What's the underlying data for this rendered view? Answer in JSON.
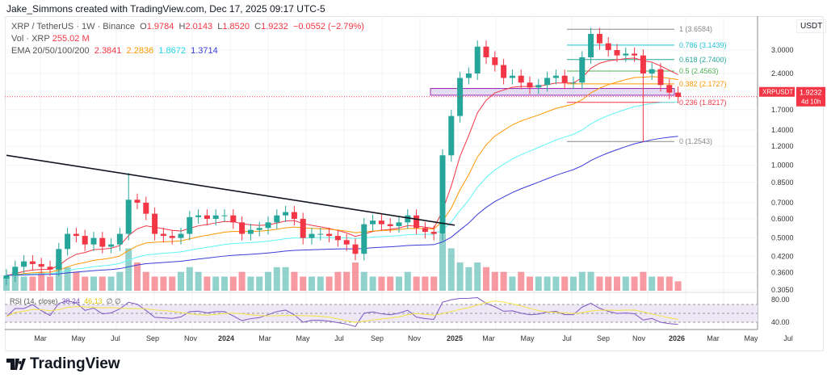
{
  "credit": "Jake_Simmons created with TradingView.com, Dec 17, 2025 09:17 UTC-5",
  "legend": {
    "symbol": "XRP / TetherUS · 1W · Binance",
    "o_label": "O",
    "o": "1.9784",
    "h_label": "H",
    "h": "2.0143",
    "l_label": "L",
    "l": "1.8520",
    "c_label": "C",
    "c": "1.9232",
    "change": "−0.0552 (−2.79%)",
    "vol_label": "Vol · XRP",
    "vol": "255.02 M",
    "ema_label": "EMA 20/50/100/200",
    "ema20": "2.3841",
    "ema50": "2.2836",
    "ema100": "1.8672",
    "ema200": "1.3714"
  },
  "colors": {
    "up": "#26a69a",
    "down": "#f23645",
    "ema20": "#f23645",
    "ema50": "#ff9800",
    "ema100": "#5ff5f5",
    "ema200": "#3b3bd9",
    "rsi": "#7e57c2",
    "rsi_ma": "#f5e342"
  },
  "price_axis": {
    "unit": "USDT",
    "ticks": [
      "3.0000",
      "2.4000",
      "1.7000",
      "1.4000",
      "1.2000",
      "1.0000",
      "0.8500",
      "0.7000",
      "0.6000",
      "0.5000",
      "0.4200",
      "0.3600",
      "0.3050"
    ],
    "tag_symbol": "XRPUSDT",
    "tag_price": "1.9232",
    "tag_countdown": "4d 10h"
  },
  "rsi": {
    "label": "RSI (14, close)",
    "value": "38.24",
    "ma": "46.13",
    "na1": "∅",
    "na2": "∅",
    "ticks": [
      "80.00",
      "40.00"
    ]
  },
  "time_axis": [
    "Mar",
    "May",
    "Jul",
    "Sep",
    "Nov",
    "2024",
    "Mar",
    "May",
    "Jul",
    "Sep",
    "Nov",
    "2025",
    "Mar",
    "May",
    "Jul",
    "Sep",
    "Nov",
    "2026",
    "Mar",
    "May",
    "Jul"
  ],
  "fib": [
    {
      "label": "1 (3.6584)",
      "price": 3.6584,
      "color": "#888888"
    },
    {
      "label": "0.786 (3.1439)",
      "price": 3.1439,
      "color": "#22c3d6"
    },
    {
      "label": "0.618 (2.7400)",
      "price": 2.74,
      "color": "#26a69a"
    },
    {
      "label": "0.5 (2.4563)",
      "price": 2.4563,
      "color": "#4caf50"
    },
    {
      "label": "0.382 (2.1727)",
      "price": 2.1727,
      "color": "#ff9800"
    },
    {
      "label": "0.236 (1.8217)",
      "price": 1.8217,
      "color": "#f23645"
    },
    {
      "label": "0 (1.2543)",
      "price": 1.2543,
      "color": "#888888"
    }
  ],
  "brand": "TradingView",
  "chart_data": {
    "type": "candlestick",
    "interval": "2 weeks (approx.)",
    "start": "2023-01",
    "scale": "log",
    "ylim": [
      0.3,
      3.9
    ],
    "closes": [
      0.35,
      0.38,
      0.4,
      0.39,
      0.38,
      0.37,
      0.45,
      0.52,
      0.51,
      0.47,
      0.5,
      0.46,
      0.47,
      0.52,
      0.72,
      0.7,
      0.63,
      0.52,
      0.51,
      0.5,
      0.52,
      0.61,
      0.62,
      0.6,
      0.62,
      0.62,
      0.58,
      0.52,
      0.54,
      0.55,
      0.58,
      0.62,
      0.64,
      0.6,
      0.5,
      0.52,
      0.52,
      0.51,
      0.49,
      0.47,
      0.43,
      0.57,
      0.59,
      0.57,
      0.56,
      0.58,
      0.62,
      0.55,
      0.53,
      0.52,
      1.1,
      1.6,
      2.3,
      2.4,
      3.1,
      2.8,
      2.6,
      2.3,
      2.35,
      2.2,
      2.1,
      2.15,
      2.3,
      2.35,
      2.2,
      2.2,
      2.8,
      3.5,
      3.2,
      3.0,
      2.85,
      2.9,
      2.85,
      2.4,
      2.5,
      2.15,
      2.0,
      1.92
    ],
    "volume": [
      3,
      4,
      3,
      3,
      4,
      3,
      6,
      5,
      4,
      3,
      3,
      3,
      3,
      4,
      9,
      6,
      4,
      3,
      3,
      3,
      4,
      5,
      4,
      3,
      3,
      3,
      3,
      4,
      3,
      3,
      4,
      5,
      5,
      4,
      3,
      3,
      3,
      3,
      4,
      4,
      6,
      4,
      3,
      3,
      3,
      3,
      4,
      3,
      3,
      3,
      12,
      9,
      6,
      5,
      6,
      5,
      4,
      4,
      3,
      4,
      3,
      3,
      3,
      3,
      3,
      3,
      4,
      4,
      3,
      3,
      3,
      3,
      3,
      4,
      3,
      3,
      3,
      2
    ],
    "trendline": {
      "from": [
        "2023-01",
        1.1
      ],
      "to": [
        "2024-12",
        0.565
      ]
    },
    "support_zone": [
      1.95,
      2.08
    ]
  }
}
